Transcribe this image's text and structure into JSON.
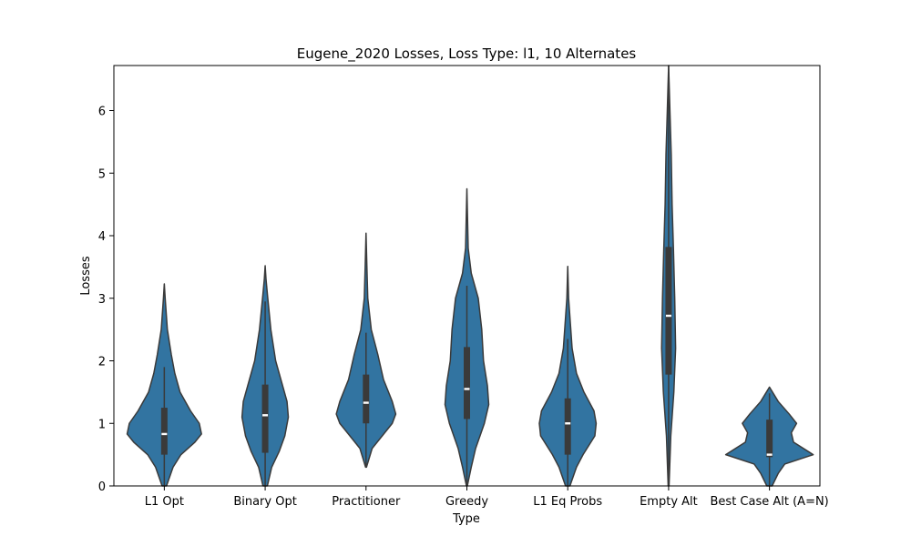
{
  "chart_data": {
    "type": "violin",
    "title": "Eugene_2020 Losses, Loss Type: l1, 10 Alternates",
    "xlabel": "Type",
    "ylabel": "Losses",
    "ylim": [
      0,
      6.72
    ],
    "yticks": [
      0,
      1,
      2,
      3,
      4,
      5,
      6
    ],
    "grid": false,
    "color": "#3274a1",
    "edge_color": "#3a3a3a",
    "categories": [
      "L1 Opt",
      "Binary Opt",
      "Practitioner",
      "Greedy",
      "L1 Eq Probs",
      "Empty Alt",
      "Best Case Alt (A=N)"
    ],
    "series": [
      {
        "category": "L1 Opt",
        "min": 0,
        "max": 3.23,
        "q1": 0.5,
        "median": 0.83,
        "q3": 1.25,
        "whisker_low": 0,
        "whisker_high": 1.9,
        "profile": [
          [
            0,
            0.05
          ],
          [
            0.3,
            0.2
          ],
          [
            0.5,
            0.38
          ],
          [
            0.7,
            0.7
          ],
          [
            0.83,
            0.85
          ],
          [
            1,
            0.8
          ],
          [
            1.2,
            0.6
          ],
          [
            1.5,
            0.36
          ],
          [
            1.8,
            0.24
          ],
          [
            2.1,
            0.16
          ],
          [
            2.5,
            0.07
          ],
          [
            3,
            0.02
          ],
          [
            3.23,
            0
          ]
        ]
      },
      {
        "category": "Binary Opt",
        "min": 0,
        "max": 3.52,
        "q1": 0.53,
        "median": 1.13,
        "q3": 1.62,
        "whisker_low": 0,
        "whisker_high": 2.95,
        "profile": [
          [
            0,
            0.05
          ],
          [
            0.3,
            0.15
          ],
          [
            0.55,
            0.32
          ],
          [
            0.8,
            0.45
          ],
          [
            1.1,
            0.53
          ],
          [
            1.35,
            0.5
          ],
          [
            1.6,
            0.4
          ],
          [
            2,
            0.24
          ],
          [
            2.5,
            0.13
          ],
          [
            3,
            0.06
          ],
          [
            3.3,
            0.02
          ],
          [
            3.52,
            0
          ]
        ]
      },
      {
        "category": "Practitioner",
        "min": 0.3,
        "max": 4.04,
        "q1": 1.0,
        "median": 1.33,
        "q3": 1.78,
        "whisker_low": 0.3,
        "whisker_high": 2.45,
        "profile": [
          [
            0.3,
            0.01
          ],
          [
            0.6,
            0.14
          ],
          [
            1,
            0.6
          ],
          [
            1.15,
            0.68
          ],
          [
            1.35,
            0.6
          ],
          [
            1.7,
            0.4
          ],
          [
            2.1,
            0.27
          ],
          [
            2.5,
            0.12
          ],
          [
            3,
            0.04
          ],
          [
            3.5,
            0.02
          ],
          [
            4.04,
            0
          ]
        ]
      },
      {
        "category": "Greedy",
        "min": 0,
        "max": 4.75,
        "q1": 1.07,
        "median": 1.55,
        "q3": 2.22,
        "whisker_low": 0,
        "whisker_high": 3.2,
        "profile": [
          [
            0,
            0.01
          ],
          [
            0.3,
            0.1
          ],
          [
            0.6,
            0.2
          ],
          [
            1,
            0.4
          ],
          [
            1.3,
            0.5
          ],
          [
            1.6,
            0.47
          ],
          [
            2,
            0.38
          ],
          [
            2.5,
            0.34
          ],
          [
            3,
            0.26
          ],
          [
            3.4,
            0.1
          ],
          [
            3.8,
            0.03
          ],
          [
            4.75,
            0
          ]
        ]
      },
      {
        "category": "L1 Eq Probs",
        "min": 0,
        "max": 3.51,
        "q1": 0.5,
        "median": 1.0,
        "q3": 1.4,
        "whisker_low": 0,
        "whisker_high": 2.35,
        "profile": [
          [
            0,
            0.05
          ],
          [
            0.3,
            0.2
          ],
          [
            0.5,
            0.35
          ],
          [
            0.8,
            0.62
          ],
          [
            1,
            0.65
          ],
          [
            1.2,
            0.6
          ],
          [
            1.5,
            0.37
          ],
          [
            1.8,
            0.2
          ],
          [
            2.2,
            0.1
          ],
          [
            2.6,
            0.06
          ],
          [
            3,
            0.02
          ],
          [
            3.51,
            0
          ]
        ]
      },
      {
        "category": "Empty Alt",
        "min": 0,
        "max": 6.72,
        "q1": 1.78,
        "median": 2.72,
        "q3": 3.82,
        "whisker_low": 0,
        "whisker_high": 6.72,
        "profile": [
          [
            0,
            0.01
          ],
          [
            0.8,
            0.05
          ],
          [
            1.5,
            0.12
          ],
          [
            2.2,
            0.16
          ],
          [
            3,
            0.14
          ],
          [
            3.8,
            0.11
          ],
          [
            4.5,
            0.08
          ],
          [
            5.3,
            0.06
          ],
          [
            6,
            0.03
          ],
          [
            6.72,
            0
          ]
        ]
      },
      {
        "category": "Best Case Alt (A=N)",
        "min": 0,
        "max": 1.58,
        "q1": 0.46,
        "median": 0.5,
        "q3": 1.06,
        "whisker_low": 0,
        "whisker_high": 1.48,
        "profile": [
          [
            0,
            0.06
          ],
          [
            0.2,
            0.2
          ],
          [
            0.35,
            0.35
          ],
          [
            0.5,
            1.0
          ],
          [
            0.7,
            0.55
          ],
          [
            0.85,
            0.5
          ],
          [
            1.0,
            0.62
          ],
          [
            1.15,
            0.45
          ],
          [
            1.35,
            0.2
          ],
          [
            1.58,
            0
          ]
        ]
      }
    ]
  }
}
